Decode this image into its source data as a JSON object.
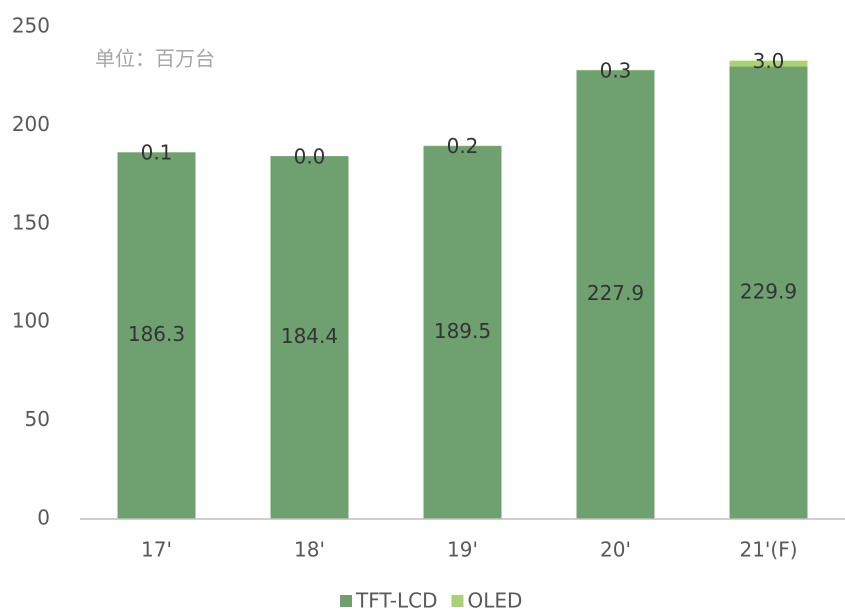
{
  "chart_data": {
    "type": "stacked_bar",
    "annotation": "单位：百万台",
    "categories": [
      "17'",
      "18'",
      "19'",
      "20'",
      "21'(F)"
    ],
    "series": [
      {
        "name": "TFT-LCD",
        "color": "#6fa070",
        "values": [
          186.3,
          184.4,
          189.5,
          227.9,
          229.9
        ]
      },
      {
        "name": "OLED",
        "color": "#a9d373",
        "values": [
          0.1,
          0,
          0.2,
          0.3,
          3
        ],
        "value_labels": [
          "0.1",
          "0.0",
          "0.2",
          "0.3",
          "3.0"
        ]
      }
    ],
    "ylim": [
      0,
      250
    ],
    "yticks": [
      0,
      50,
      100,
      150,
      200,
      250
    ],
    "grid": false,
    "legend": "bottom"
  }
}
